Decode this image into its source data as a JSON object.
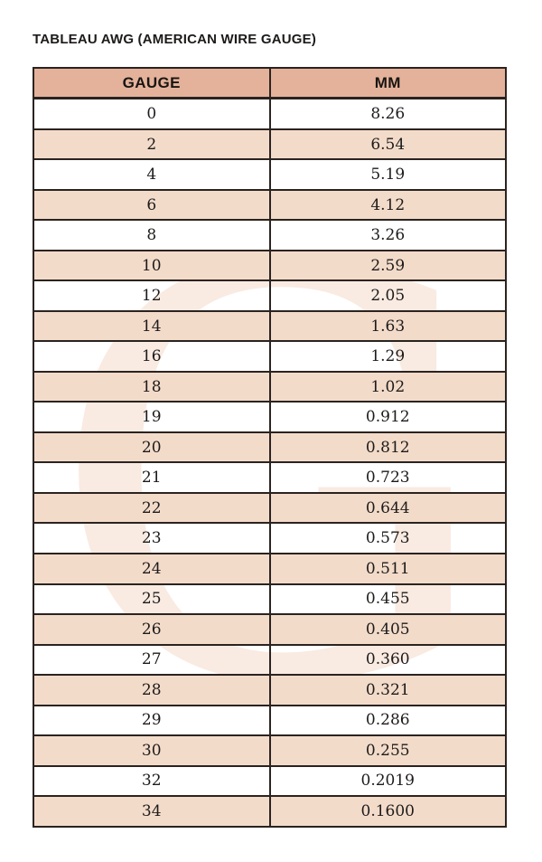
{
  "title": "TABLEAU AWG (AMERICAN WIRE GAUGE)",
  "watermark": {
    "letter": "G"
  },
  "colors": {
    "header_bg": "#e4b29a",
    "row_alt_bg": "#f3dbca",
    "border": "#2a2320",
    "text": "#1d1b1a",
    "watermark": "#f9ebe2"
  },
  "chart_data": {
    "type": "table",
    "title": "TABLEAU AWG (AMERICAN WIRE GAUGE)",
    "columns": [
      "GAUGE",
      "MM"
    ],
    "rows": [
      [
        "0",
        "8.26"
      ],
      [
        "2",
        "6.54"
      ],
      [
        "4",
        "5.19"
      ],
      [
        "6",
        "4.12"
      ],
      [
        "8",
        "3.26"
      ],
      [
        "10",
        "2.59"
      ],
      [
        "12",
        "2.05"
      ],
      [
        "14",
        "1.63"
      ],
      [
        "16",
        "1.29"
      ],
      [
        "18",
        "1.02"
      ],
      [
        "19",
        "0.912"
      ],
      [
        "20",
        "0.812"
      ],
      [
        "21",
        "0.723"
      ],
      [
        "22",
        "0.644"
      ],
      [
        "23",
        "0.573"
      ],
      [
        "24",
        "0.511"
      ],
      [
        "25",
        "0.455"
      ],
      [
        "26",
        "0.405"
      ],
      [
        "27",
        "0.360"
      ],
      [
        "28",
        "0.321"
      ],
      [
        "29",
        "0.286"
      ],
      [
        "30",
        "0.255"
      ],
      [
        "32",
        "0.2019"
      ],
      [
        "34",
        "0.1600"
      ]
    ]
  },
  "table": {
    "columns": [
      "GAUGE",
      "MM"
    ],
    "rows": [
      [
        "0",
        "8.26"
      ],
      [
        "2",
        "6.54"
      ],
      [
        "4",
        "5.19"
      ],
      [
        "6",
        "4.12"
      ],
      [
        "8",
        "3.26"
      ],
      [
        "10",
        "2.59"
      ],
      [
        "12",
        "2.05"
      ],
      [
        "14",
        "1.63"
      ],
      [
        "16",
        "1.29"
      ],
      [
        "18",
        "1.02"
      ],
      [
        "19",
        "0.912"
      ],
      [
        "20",
        "0.812"
      ],
      [
        "21",
        "0.723"
      ],
      [
        "22",
        "0.644"
      ],
      [
        "23",
        "0.573"
      ],
      [
        "24",
        "0.511"
      ],
      [
        "25",
        "0.455"
      ],
      [
        "26",
        "0.405"
      ],
      [
        "27",
        "0.360"
      ],
      [
        "28",
        "0.321"
      ],
      [
        "29",
        "0.286"
      ],
      [
        "30",
        "0.255"
      ],
      [
        "32",
        "0.2019"
      ],
      [
        "34",
        "0.1600"
      ]
    ]
  }
}
